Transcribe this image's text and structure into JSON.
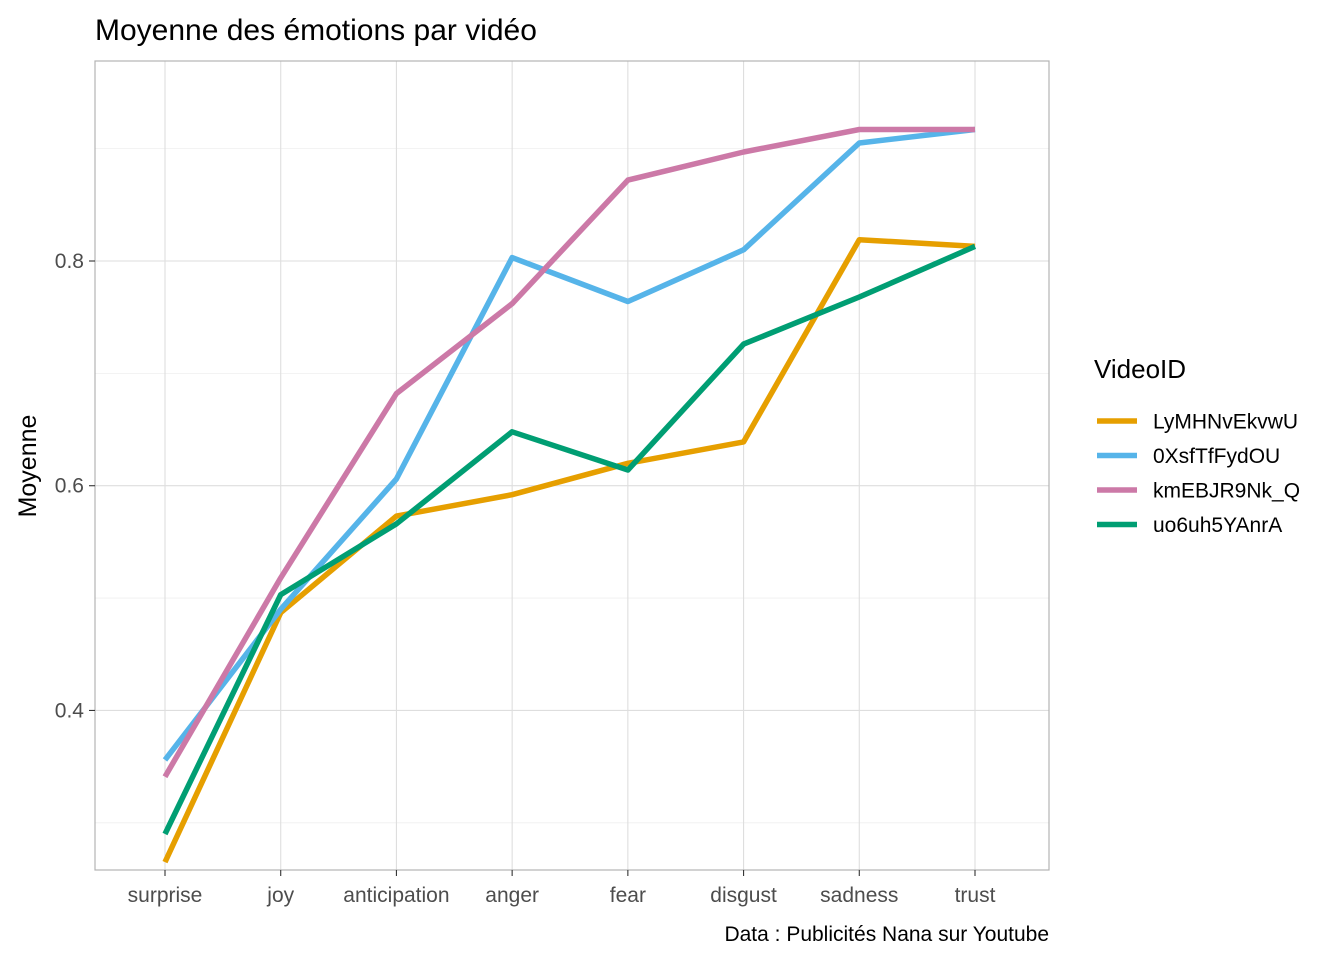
{
  "chart_data": {
    "type": "line",
    "title": "Moyenne des émotions par vidéo",
    "xlabel": "",
    "ylabel": "Moyenne",
    "caption": "Data : Publicités Nana sur Youtube",
    "categories": [
      "surprise",
      "joy",
      "anticipation",
      "anger",
      "fear",
      "disgust",
      "sadness",
      "trust"
    ],
    "ylim": [
      0.258,
      0.978
    ],
    "yticks": [
      0.4,
      0.6,
      0.8
    ],
    "ytick_labels": [
      "0.4",
      "0.6",
      "0.8"
    ],
    "grid": true,
    "legend": {
      "title": "VideoID",
      "placement": "right"
    },
    "series": [
      {
        "name": "LyMHNvEkvwU",
        "color": "#E69F00",
        "values": [
          0.265,
          0.487,
          0.573,
          0.592,
          0.62,
          0.639,
          0.819,
          0.813
        ]
      },
      {
        "name": "0XsfTfFydOU",
        "color": "#56B4E9",
        "values": [
          0.356,
          0.49,
          0.606,
          0.803,
          0.764,
          0.81,
          0.905,
          0.917
        ]
      },
      {
        "name": "kmEBJR9Nk_Q",
        "color": "#CC79A7",
        "values": [
          0.341,
          0.518,
          0.682,
          0.762,
          0.872,
          0.897,
          0.917,
          0.917
        ]
      },
      {
        "name": "uo6uh5YAnrA",
        "color": "#009E73",
        "values": [
          0.29,
          0.503,
          0.566,
          0.648,
          0.614,
          0.726,
          0.768,
          0.813
        ]
      }
    ]
  }
}
